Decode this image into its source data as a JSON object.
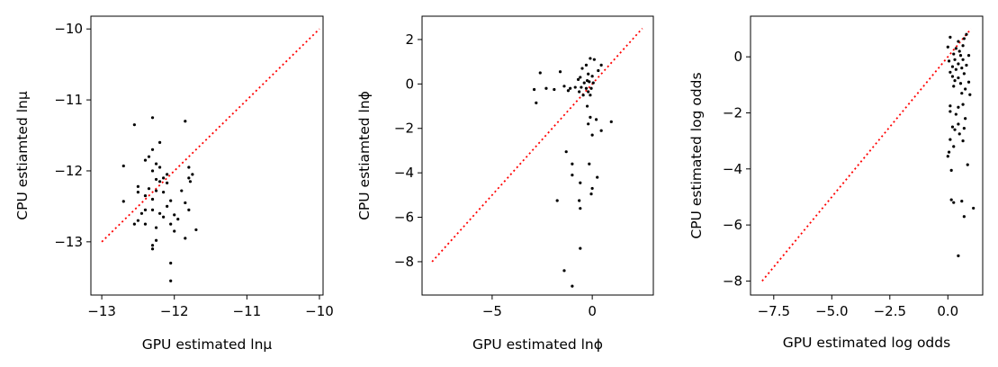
{
  "chart_data": [
    {
      "type": "scatter",
      "xlabel": "GPU estimated lnμ",
      "ylabel": "CPU estiamted lnμ",
      "xlim": [
        -13.15,
        -9.95
      ],
      "ylim": [
        -13.75,
        -9.82
      ],
      "xticks": [
        "-13",
        "-12",
        "-11",
        "-10"
      ],
      "yticks": [
        "-13",
        "-12",
        "-11",
        "-10"
      ],
      "grid": false,
      "reference_line": {
        "style": "dotted",
        "color": "#ff0000",
        "from": [
          -13,
          -13
        ],
        "to": [
          -10,
          -10
        ]
      },
      "points": [
        [
          -12.55,
          -11.35
        ],
        [
          -12.3,
          -11.25
        ],
        [
          -12.2,
          -11.6
        ],
        [
          -11.85,
          -11.3
        ],
        [
          -12.3,
          -11.7
        ],
        [
          -12.35,
          -11.8
        ],
        [
          -12.4,
          -11.85
        ],
        [
          -12.25,
          -11.9
        ],
        [
          -12.2,
          -11.95
        ],
        [
          -12.7,
          -11.93
        ],
        [
          -11.8,
          -11.95
        ],
        [
          -12.3,
          -12.0
        ],
        [
          -12.1,
          -12.05
        ],
        [
          -11.75,
          -12.05
        ],
        [
          -11.8,
          -12.1
        ],
        [
          -12.15,
          -12.1
        ],
        [
          -12.25,
          -12.12
        ],
        [
          -12.2,
          -12.15
        ],
        [
          -12.1,
          -12.17
        ],
        [
          -11.78,
          -12.15
        ],
        [
          -12.5,
          -12.22
        ],
        [
          -12.35,
          -12.25
        ],
        [
          -12.25,
          -12.28
        ],
        [
          -12.15,
          -12.3
        ],
        [
          -11.9,
          -12.28
        ],
        [
          -12.5,
          -12.3
        ],
        [
          -12.4,
          -12.35
        ],
        [
          -12.3,
          -12.4
        ],
        [
          -12.05,
          -12.42
        ],
        [
          -12.7,
          -12.43
        ],
        [
          -11.85,
          -12.45
        ],
        [
          -12.1,
          -12.5
        ],
        [
          -12.4,
          -12.55
        ],
        [
          -12.3,
          -12.55
        ],
        [
          -11.8,
          -12.55
        ],
        [
          -12.45,
          -12.6
        ],
        [
          -12.2,
          -12.6
        ],
        [
          -12.0,
          -12.62
        ],
        [
          -12.15,
          -12.65
        ],
        [
          -11.95,
          -12.68
        ],
        [
          -12.5,
          -12.7
        ],
        [
          -12.05,
          -12.75
        ],
        [
          -12.55,
          -12.75
        ],
        [
          -12.4,
          -12.75
        ],
        [
          -12.25,
          -12.8
        ],
        [
          -11.7,
          -12.83
        ],
        [
          -12.0,
          -12.85
        ],
        [
          -11.85,
          -12.95
        ],
        [
          -12.25,
          -12.98
        ],
        [
          -12.3,
          -13.05
        ],
        [
          -12.3,
          -13.1
        ],
        [
          -12.05,
          -13.3
        ],
        [
          -12.05,
          -13.55
        ]
      ]
    },
    {
      "type": "scatter",
      "xlabel": "GPU estimated lnϕ",
      "ylabel": "CPU estiamted lnϕ",
      "xlim": [
        -8.5,
        3.05
      ],
      "ylim": [
        -9.5,
        3.05
      ],
      "xticks": [
        "-5",
        "0"
      ],
      "yticks": [
        "-8",
        "-6",
        "-4",
        "-2",
        "0",
        "2"
      ],
      "grid": false,
      "reference_line": {
        "style": "dotted",
        "color": "#ff0000",
        "from": [
          -8,
          -8
        ],
        "to": [
          2.5,
          2.5
        ]
      },
      "points": [
        [
          -0.1,
          1.15
        ],
        [
          0.1,
          1.1
        ],
        [
          -0.3,
          0.85
        ],
        [
          0.45,
          0.85
        ],
        [
          0.3,
          0.6
        ],
        [
          -0.5,
          0.7
        ],
        [
          -1.6,
          0.55
        ],
        [
          -2.6,
          0.5
        ],
        [
          -0.2,
          0.45
        ],
        [
          0.0,
          0.35
        ],
        [
          -0.6,
          0.3
        ],
        [
          -0.7,
          0.2
        ],
        [
          -0.25,
          0.15
        ],
        [
          -0.15,
          0.1
        ],
        [
          -0.4,
          0.05
        ],
        [
          0.05,
          0.05
        ],
        [
          -1.4,
          -0.1
        ],
        [
          -0.85,
          -0.15
        ],
        [
          -0.55,
          -0.15
        ],
        [
          -2.3,
          -0.2
        ],
        [
          -1.1,
          -0.2
        ],
        [
          -0.3,
          -0.2
        ],
        [
          -0.05,
          -0.2
        ],
        [
          -2.9,
          -0.25
        ],
        [
          -1.9,
          -0.25
        ],
        [
          -1.2,
          -0.3
        ],
        [
          -0.65,
          -0.35
        ],
        [
          -0.2,
          -0.35
        ],
        [
          -0.45,
          -0.5
        ],
        [
          -0.1,
          -0.5
        ],
        [
          -2.8,
          -0.85
        ],
        [
          -0.25,
          -1.0
        ],
        [
          -0.1,
          -1.5
        ],
        [
          0.2,
          -1.6
        ],
        [
          0.95,
          -1.7
        ],
        [
          -0.2,
          -1.8
        ],
        [
          0.45,
          -2.1
        ],
        [
          0.0,
          -2.3
        ],
        [
          -1.3,
          -3.05
        ],
        [
          -1.0,
          -3.6
        ],
        [
          -0.15,
          -3.6
        ],
        [
          -1.0,
          -4.1
        ],
        [
          0.25,
          -4.2
        ],
        [
          -0.6,
          -4.45
        ],
        [
          0.0,
          -4.7
        ],
        [
          -0.05,
          -4.95
        ],
        [
          -1.75,
          -5.25
        ],
        [
          -0.65,
          -5.25
        ],
        [
          -0.6,
          -5.6
        ],
        [
          -0.6,
          -7.4
        ],
        [
          -1.4,
          -8.4
        ],
        [
          -1.0,
          -9.1
        ]
      ]
    },
    {
      "type": "scatter",
      "xlabel": "GPU estimated log odds",
      "ylabel": "CPU estimated log odds",
      "xlim": [
        -8.5,
        1.5
      ],
      "ylim": [
        -8.5,
        1.45
      ],
      "xticks": [
        "-7.5",
        "-5.0",
        "-2.5",
        "0.0"
      ],
      "yticks": [
        "-8",
        "-6",
        "-4",
        "-2",
        "0"
      ],
      "grid": false,
      "reference_line": {
        "style": "dotted",
        "color": "#ff0000",
        "from": [
          -8,
          -8
        ],
        "to": [
          1,
          1
        ]
      },
      "points": [
        [
          0.1,
          0.7
        ],
        [
          0.8,
          0.8
        ],
        [
          0.45,
          0.55
        ],
        [
          0.7,
          0.65
        ],
        [
          0.0,
          0.35
        ],
        [
          0.35,
          0.3
        ],
        [
          0.65,
          0.4
        ],
        [
          0.5,
          0.2
        ],
        [
          0.25,
          0.1
        ],
        [
          0.55,
          0.05
        ],
        [
          0.9,
          0.05
        ],
        [
          0.05,
          -0.15
        ],
        [
          0.3,
          -0.1
        ],
        [
          0.65,
          -0.1
        ],
        [
          0.45,
          -0.25
        ],
        [
          0.8,
          -0.3
        ],
        [
          0.2,
          -0.35
        ],
        [
          0.6,
          -0.4
        ],
        [
          0.35,
          -0.45
        ],
        [
          0.1,
          -0.55
        ],
        [
          0.7,
          -0.6
        ],
        [
          0.2,
          -0.7
        ],
        [
          0.45,
          -0.75
        ],
        [
          0.3,
          -0.85
        ],
        [
          0.9,
          -0.9
        ],
        [
          0.55,
          -0.95
        ],
        [
          0.25,
          -1.05
        ],
        [
          0.75,
          -1.15
        ],
        [
          0.6,
          -1.3
        ],
        [
          0.95,
          -1.35
        ],
        [
          0.65,
          -1.7
        ],
        [
          0.1,
          -1.75
        ],
        [
          0.45,
          -1.8
        ],
        [
          0.1,
          -1.95
        ],
        [
          0.35,
          -2.05
        ],
        [
          0.75,
          -2.2
        ],
        [
          0.45,
          -2.4
        ],
        [
          0.2,
          -2.5
        ],
        [
          0.3,
          -2.6
        ],
        [
          0.7,
          -2.55
        ],
        [
          0.5,
          -2.75
        ],
        [
          0.1,
          -2.95
        ],
        [
          0.65,
          -3.0
        ],
        [
          0.25,
          -3.2
        ],
        [
          0.05,
          -3.4
        ],
        [
          0.0,
          -3.55
        ],
        [
          0.85,
          -3.85
        ],
        [
          0.15,
          -4.05
        ],
        [
          0.15,
          -5.1
        ],
        [
          0.25,
          -5.2
        ],
        [
          0.6,
          -5.15
        ],
        [
          1.1,
          -5.4
        ],
        [
          0.7,
          -5.7
        ],
        [
          0.45,
          -7.1
        ]
      ]
    }
  ]
}
